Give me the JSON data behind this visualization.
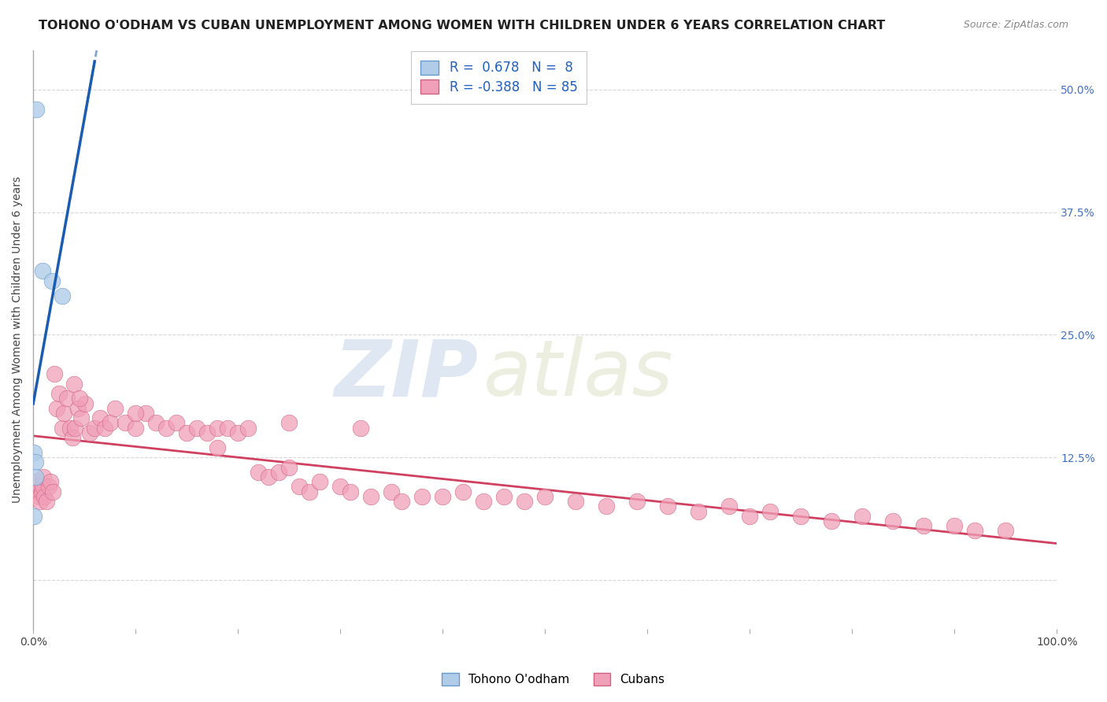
{
  "title": "TOHONO O'ODHAM VS CUBAN UNEMPLOYMENT AMONG WOMEN WITH CHILDREN UNDER 6 YEARS CORRELATION CHART",
  "source": "Source: ZipAtlas.com",
  "ylabel": "Unemployment Among Women with Children Under 6 years",
  "watermark_zip": "ZIP",
  "watermark_atlas": "atlas",
  "xlim": [
    0.0,
    1.0
  ],
  "ylim": [
    -0.05,
    0.54
  ],
  "yticks": [
    0.0,
    0.125,
    0.25,
    0.375,
    0.5
  ],
  "ytick_labels": [
    "",
    "12.5%",
    "25.0%",
    "37.5%",
    "50.0%"
  ],
  "background_color": "#ffffff",
  "grid_color": "#d8d8d8",
  "title_fontsize": 11.5,
  "axis_label_fontsize": 10,
  "tick_fontsize": 10,
  "tohono": {
    "name": "Tohono O'odham",
    "R": 0.678,
    "N": 8,
    "color": "#b0cce8",
    "edge_color": "#6699cc",
    "trend_color": "#1a5cb0",
    "x": [
      0.003,
      0.009,
      0.018,
      0.028,
      0.001,
      0.002,
      0.002,
      0.001
    ],
    "y": [
      0.48,
      0.315,
      0.305,
      0.29,
      0.13,
      0.12,
      0.105,
      0.065
    ]
  },
  "cubans": {
    "name": "Cubans",
    "R": -0.388,
    "N": 85,
    "color": "#f0a0b8",
    "edge_color": "#d06080",
    "trend_color": "#d04060",
    "x": [
      0.002,
      0.004,
      0.005,
      0.006,
      0.007,
      0.008,
      0.009,
      0.01,
      0.011,
      0.013,
      0.015,
      0.017,
      0.019,
      0.021,
      0.023,
      0.025,
      0.028,
      0.03,
      0.033,
      0.036,
      0.038,
      0.041,
      0.044,
      0.047,
      0.051,
      0.055,
      0.06,
      0.065,
      0.07,
      0.075,
      0.08,
      0.09,
      0.1,
      0.11,
      0.12,
      0.13,
      0.14,
      0.15,
      0.16,
      0.17,
      0.18,
      0.19,
      0.2,
      0.21,
      0.22,
      0.23,
      0.24,
      0.25,
      0.26,
      0.27,
      0.28,
      0.3,
      0.31,
      0.33,
      0.35,
      0.36,
      0.38,
      0.4,
      0.42,
      0.44,
      0.46,
      0.48,
      0.5,
      0.53,
      0.56,
      0.59,
      0.62,
      0.65,
      0.68,
      0.7,
      0.72,
      0.75,
      0.78,
      0.81,
      0.84,
      0.87,
      0.9,
      0.92,
      0.95,
      0.1,
      0.04,
      0.25,
      0.18,
      0.32,
      0.045
    ],
    "y": [
      0.1,
      0.09,
      0.095,
      0.085,
      0.08,
      0.09,
      0.095,
      0.105,
      0.085,
      0.08,
      0.095,
      0.1,
      0.09,
      0.21,
      0.175,
      0.19,
      0.155,
      0.17,
      0.185,
      0.155,
      0.145,
      0.155,
      0.175,
      0.165,
      0.18,
      0.15,
      0.155,
      0.165,
      0.155,
      0.16,
      0.175,
      0.16,
      0.155,
      0.17,
      0.16,
      0.155,
      0.16,
      0.15,
      0.155,
      0.15,
      0.155,
      0.155,
      0.15,
      0.155,
      0.11,
      0.105,
      0.11,
      0.115,
      0.095,
      0.09,
      0.1,
      0.095,
      0.09,
      0.085,
      0.09,
      0.08,
      0.085,
      0.085,
      0.09,
      0.08,
      0.085,
      0.08,
      0.085,
      0.08,
      0.075,
      0.08,
      0.075,
      0.07,
      0.075,
      0.065,
      0.07,
      0.065,
      0.06,
      0.065,
      0.06,
      0.055,
      0.055,
      0.05,
      0.05,
      0.17,
      0.2,
      0.16,
      0.135,
      0.155,
      0.185
    ]
  },
  "legend_color": "#2060c0"
}
